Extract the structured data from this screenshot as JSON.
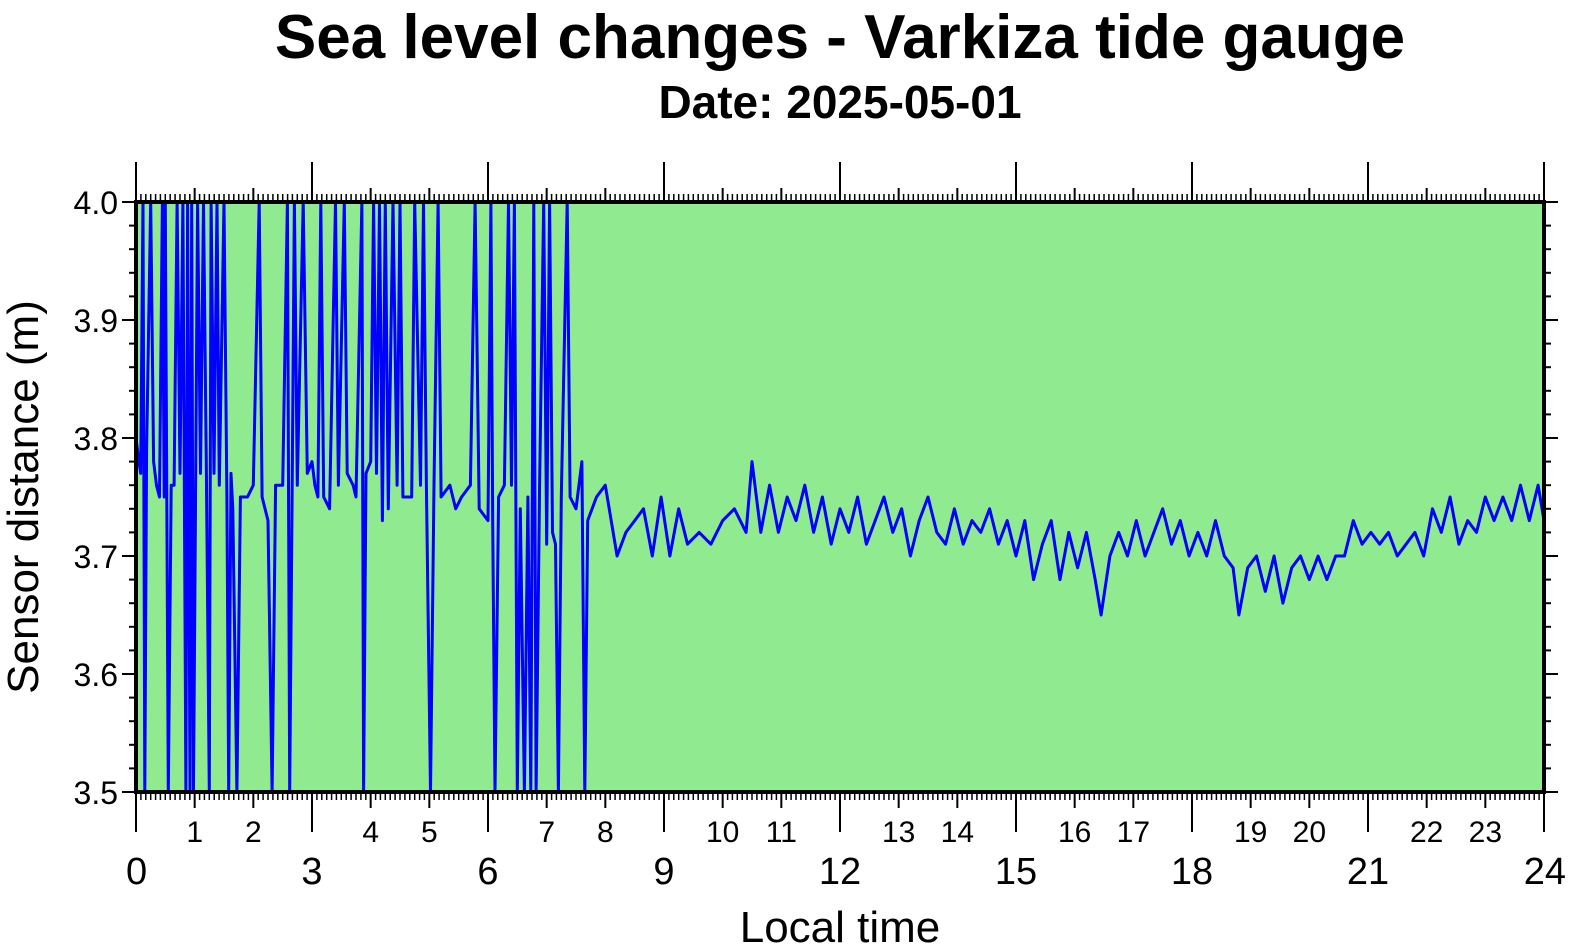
{
  "chart_data": {
    "type": "line",
    "title": "Sea level changes - Varkiza tide gauge",
    "subtitle": "Date: 2025-05-01",
    "xlabel": "Local time",
    "ylabel": "Sensor distance (m)",
    "xlim": [
      0,
      24
    ],
    "ylim": [
      3.5,
      4.0
    ],
    "x_major_ticks": [
      "0",
      "3",
      "6",
      "9",
      "12",
      "15",
      "18",
      "21",
      "24"
    ],
    "x_minor_tick_labels": [
      "1",
      "2",
      "4",
      "5",
      "7",
      "8",
      "10",
      "11",
      "13",
      "14",
      "16",
      "17",
      "19",
      "20",
      "22",
      "23"
    ],
    "y_ticks": [
      "3.5",
      "3.6",
      "3.7",
      "3.8",
      "3.9",
      "4.0"
    ],
    "plot_background": "#90eb90",
    "line_color": "#0000ff",
    "grid": false,
    "series": [
      {
        "points": [
          [
            0.0,
            3.8
          ],
          [
            0.05,
            3.78
          ],
          [
            0.08,
            3.77
          ],
          [
            0.12,
            4.0
          ],
          [
            0.15,
            3.5
          ],
          [
            0.18,
            3.79
          ],
          [
            0.25,
            4.0
          ],
          [
            0.3,
            3.78
          ],
          [
            0.35,
            3.76
          ],
          [
            0.4,
            3.75
          ],
          [
            0.45,
            4.0
          ],
          [
            0.48,
            3.75
          ],
          [
            0.5,
            4.0
          ],
          [
            0.55,
            3.5
          ],
          [
            0.6,
            3.76
          ],
          [
            0.65,
            3.76
          ],
          [
            0.7,
            4.0
          ],
          [
            0.75,
            3.77
          ],
          [
            0.8,
            4.0
          ],
          [
            0.85,
            3.5
          ],
          [
            0.88,
            4.0
          ],
          [
            0.92,
            3.5
          ],
          [
            0.95,
            4.0
          ],
          [
            0.98,
            3.5
          ],
          [
            1.02,
            3.78
          ],
          [
            1.05,
            4.0
          ],
          [
            1.1,
            3.77
          ],
          [
            1.15,
            4.0
          ],
          [
            1.2,
            3.77
          ],
          [
            1.25,
            3.5
          ],
          [
            1.28,
            4.0
          ],
          [
            1.33,
            3.77
          ],
          [
            1.38,
            4.0
          ],
          [
            1.42,
            3.76
          ],
          [
            1.5,
            4.0
          ],
          [
            1.55,
            3.75
          ],
          [
            1.58,
            3.5
          ],
          [
            1.62,
            3.77
          ],
          [
            1.65,
            3.74
          ],
          [
            1.72,
            3.5
          ],
          [
            1.78,
            3.75
          ],
          [
            1.9,
            3.75
          ],
          [
            2.0,
            3.76
          ],
          [
            2.1,
            4.0
          ],
          [
            2.15,
            3.75
          ],
          [
            2.25,
            3.73
          ],
          [
            2.32,
            3.5
          ],
          [
            2.38,
            3.76
          ],
          [
            2.5,
            3.76
          ],
          [
            2.58,
            4.0
          ],
          [
            2.62,
            3.5
          ],
          [
            2.66,
            3.75
          ],
          [
            2.7,
            4.0
          ],
          [
            2.75,
            3.76
          ],
          [
            2.85,
            4.0
          ],
          [
            2.92,
            3.77
          ],
          [
            3.0,
            3.78
          ],
          [
            3.05,
            3.76
          ],
          [
            3.1,
            3.75
          ],
          [
            3.15,
            4.0
          ],
          [
            3.2,
            3.75
          ],
          [
            3.3,
            3.74
          ],
          [
            3.4,
            4.0
          ],
          [
            3.45,
            3.76
          ],
          [
            3.55,
            4.0
          ],
          [
            3.6,
            3.77
          ],
          [
            3.7,
            3.76
          ],
          [
            3.75,
            3.75
          ],
          [
            3.85,
            4.0
          ],
          [
            3.88,
            3.5
          ],
          [
            3.92,
            3.77
          ],
          [
            4.0,
            3.78
          ],
          [
            4.05,
            4.0
          ],
          [
            4.1,
            3.77
          ],
          [
            4.15,
            4.0
          ],
          [
            4.2,
            3.73
          ],
          [
            4.25,
            4.0
          ],
          [
            4.3,
            3.74
          ],
          [
            4.38,
            4.0
          ],
          [
            4.45,
            3.76
          ],
          [
            4.5,
            4.0
          ],
          [
            4.55,
            3.75
          ],
          [
            4.7,
            3.75
          ],
          [
            4.75,
            4.0
          ],
          [
            4.85,
            3.76
          ],
          [
            4.9,
            4.0
          ],
          [
            4.95,
            3.76
          ],
          [
            5.02,
            3.5
          ],
          [
            5.08,
            3.76
          ],
          [
            5.15,
            4.0
          ],
          [
            5.2,
            3.75
          ],
          [
            5.35,
            3.76
          ],
          [
            5.45,
            3.74
          ],
          [
            5.55,
            3.75
          ],
          [
            5.7,
            3.76
          ],
          [
            5.78,
            4.0
          ],
          [
            5.85,
            3.74
          ],
          [
            6.0,
            3.73
          ],
          [
            6.05,
            4.0
          ],
          [
            6.08,
            3.73
          ],
          [
            6.12,
            3.5
          ],
          [
            6.18,
            3.75
          ],
          [
            6.28,
            3.76
          ],
          [
            6.35,
            4.0
          ],
          [
            6.4,
            3.76
          ],
          [
            6.45,
            4.0
          ],
          [
            6.5,
            3.5
          ],
          [
            6.55,
            3.74
          ],
          [
            6.62,
            3.5
          ],
          [
            6.68,
            3.75
          ],
          [
            6.73,
            3.5
          ],
          [
            6.78,
            4.0
          ],
          [
            6.82,
            3.5
          ],
          [
            6.88,
            3.76
          ],
          [
            6.95,
            4.0
          ],
          [
            7.0,
            3.71
          ],
          [
            7.05,
            4.0
          ],
          [
            7.1,
            3.72
          ],
          [
            7.15,
            3.71
          ],
          [
            7.2,
            3.5
          ],
          [
            7.25,
            3.75
          ],
          [
            7.35,
            4.0
          ],
          [
            7.4,
            3.75
          ],
          [
            7.5,
            3.74
          ],
          [
            7.6,
            3.78
          ],
          [
            7.65,
            3.5
          ],
          [
            7.7,
            3.73
          ],
          [
            7.85,
            3.75
          ],
          [
            8.0,
            3.76
          ],
          [
            8.1,
            3.73
          ],
          [
            8.2,
            3.7
          ],
          [
            8.35,
            3.72
          ],
          [
            8.5,
            3.73
          ],
          [
            8.65,
            3.74
          ],
          [
            8.8,
            3.7
          ],
          [
            8.95,
            3.75
          ],
          [
            9.1,
            3.7
          ],
          [
            9.25,
            3.74
          ],
          [
            9.4,
            3.71
          ],
          [
            9.6,
            3.72
          ],
          [
            9.8,
            3.71
          ],
          [
            10.0,
            3.73
          ],
          [
            10.2,
            3.74
          ],
          [
            10.4,
            3.72
          ],
          [
            10.5,
            3.78
          ],
          [
            10.65,
            3.72
          ],
          [
            10.8,
            3.76
          ],
          [
            10.95,
            3.72
          ],
          [
            11.1,
            3.75
          ],
          [
            11.25,
            3.73
          ],
          [
            11.4,
            3.76
          ],
          [
            11.55,
            3.72
          ],
          [
            11.7,
            3.75
          ],
          [
            11.85,
            3.71
          ],
          [
            12.0,
            3.74
          ],
          [
            12.15,
            3.72
          ],
          [
            12.3,
            3.75
          ],
          [
            12.45,
            3.71
          ],
          [
            12.6,
            3.73
          ],
          [
            12.75,
            3.75
          ],
          [
            12.9,
            3.72
          ],
          [
            13.05,
            3.74
          ],
          [
            13.2,
            3.7
          ],
          [
            13.35,
            3.73
          ],
          [
            13.5,
            3.75
          ],
          [
            13.65,
            3.72
          ],
          [
            13.8,
            3.71
          ],
          [
            13.95,
            3.74
          ],
          [
            14.1,
            3.71
          ],
          [
            14.25,
            3.73
          ],
          [
            14.4,
            3.72
          ],
          [
            14.55,
            3.74
          ],
          [
            14.7,
            3.71
          ],
          [
            14.85,
            3.73
          ],
          [
            15.0,
            3.7
          ],
          [
            15.15,
            3.73
          ],
          [
            15.3,
            3.68
          ],
          [
            15.45,
            3.71
          ],
          [
            15.6,
            3.73
          ],
          [
            15.75,
            3.68
          ],
          [
            15.9,
            3.72
          ],
          [
            16.05,
            3.69
          ],
          [
            16.2,
            3.72
          ],
          [
            16.35,
            3.68
          ],
          [
            16.45,
            3.65
          ],
          [
            16.6,
            3.7
          ],
          [
            16.75,
            3.72
          ],
          [
            16.9,
            3.7
          ],
          [
            17.05,
            3.73
          ],
          [
            17.2,
            3.7
          ],
          [
            17.35,
            3.72
          ],
          [
            17.5,
            3.74
          ],
          [
            17.65,
            3.71
          ],
          [
            17.8,
            3.73
          ],
          [
            17.95,
            3.7
          ],
          [
            18.1,
            3.72
          ],
          [
            18.25,
            3.7
          ],
          [
            18.4,
            3.73
          ],
          [
            18.55,
            3.7
          ],
          [
            18.7,
            3.69
          ],
          [
            18.8,
            3.65
          ],
          [
            18.95,
            3.69
          ],
          [
            19.1,
            3.7
          ],
          [
            19.25,
            3.67
          ],
          [
            19.4,
            3.7
          ],
          [
            19.55,
            3.66
          ],
          [
            19.7,
            3.69
          ],
          [
            19.85,
            3.7
          ],
          [
            20.0,
            3.68
          ],
          [
            20.15,
            3.7
          ],
          [
            20.3,
            3.68
          ],
          [
            20.45,
            3.7
          ],
          [
            20.6,
            3.7
          ],
          [
            20.75,
            3.73
          ],
          [
            20.9,
            3.71
          ],
          [
            21.05,
            3.72
          ],
          [
            21.2,
            3.71
          ],
          [
            21.35,
            3.72
          ],
          [
            21.5,
            3.7
          ],
          [
            21.65,
            3.71
          ],
          [
            21.8,
            3.72
          ],
          [
            21.95,
            3.7
          ],
          [
            22.1,
            3.74
          ],
          [
            22.25,
            3.72
          ],
          [
            22.4,
            3.75
          ],
          [
            22.55,
            3.71
          ],
          [
            22.7,
            3.73
          ],
          [
            22.85,
            3.72
          ],
          [
            23.0,
            3.75
          ],
          [
            23.15,
            3.73
          ],
          [
            23.3,
            3.75
          ],
          [
            23.45,
            3.73
          ],
          [
            23.6,
            3.76
          ],
          [
            23.75,
            3.73
          ],
          [
            23.9,
            3.76
          ],
          [
            24.0,
            3.73
          ]
        ]
      }
    ]
  }
}
